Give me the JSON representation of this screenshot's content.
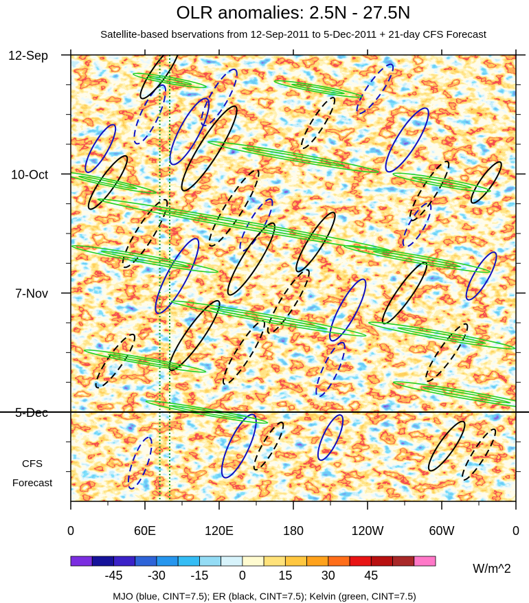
{
  "chart_data": {
    "type": "heatmap",
    "title": "OLR anomalies: 2.5N - 27.5N",
    "subtitle": "Satellite-based bservations from 12-Sep-2011 to 5-Dec-2011 + 21-day CFS Forecast",
    "x_ticks": [
      {
        "lon": 0,
        "label": "0"
      },
      {
        "lon": 60,
        "label": "60E"
      },
      {
        "lon": 120,
        "label": "120E"
      },
      {
        "lon": 180,
        "label": "180"
      },
      {
        "lon": 240,
        "label": "120W"
      },
      {
        "lon": 300,
        "label": "60W"
      },
      {
        "lon": 360,
        "label": "0"
      }
    ],
    "xlim": [
      0,
      360
    ],
    "y_ticks": [
      {
        "day": 0,
        "label": "12-Sep"
      },
      {
        "day": 28,
        "label": "10-Oct"
      },
      {
        "day": 56,
        "label": "7-Nov"
      },
      {
        "day": 84,
        "label": "5-Dec"
      }
    ],
    "ylim_days": [
      0,
      105
    ],
    "observation_end_day": 84,
    "forecast_label_line1": "CFS",
    "forecast_label_line2": "Forecast",
    "reference_lines_lon": [
      72,
      80
    ],
    "colorbar": {
      "levels": [
        "-45",
        "-30",
        "-15",
        "0",
        "15",
        "30",
        "45"
      ],
      "colors": [
        "#7b2ee0",
        "#16129a",
        "#3b22c8",
        "#2e64d8",
        "#2696ee",
        "#35bdf5",
        "#94dcf5",
        "#d7f3fb",
        "#fffbd0",
        "#ffe27a",
        "#ffc740",
        "#ffa21c",
        "#ff6e1a",
        "#e81414",
        "#b81010",
        "#a82828",
        "#ff78c8"
      ],
      "unit": "W/m^2"
    },
    "contour_legend": "MJO (blue, CINT=7.5); ER (black, CINT=7.5); Kelvin (green, CINT=7.5)",
    "contour_colors": {
      "mjo": "#1010c0",
      "er": "#000000",
      "kelvin": "#22d022"
    },
    "mjo_contours": [
      {
        "lon": 24,
        "day": 22,
        "a": 22,
        "b": 6,
        "angle": -60,
        "dashed": false
      },
      {
        "lon": 64,
        "day": 14,
        "a": 26,
        "b": 7,
        "angle": -65,
        "dashed": true
      },
      {
        "lon": 96,
        "day": 18,
        "a": 30,
        "b": 8,
        "angle": -62,
        "dashed": false
      },
      {
        "lon": 120,
        "day": 10,
        "a": 26,
        "b": 7,
        "angle": -60,
        "dashed": true
      },
      {
        "lon": 86,
        "day": 52,
        "a": 34,
        "b": 8,
        "angle": -62,
        "dashed": false
      },
      {
        "lon": 150,
        "day": 40,
        "a": 24,
        "b": 6,
        "angle": -60,
        "dashed": true
      },
      {
        "lon": 224,
        "day": 60,
        "a": 28,
        "b": 7,
        "angle": -62,
        "dashed": false
      },
      {
        "lon": 210,
        "day": 74,
        "a": 24,
        "b": 6,
        "angle": -65,
        "dashed": true
      },
      {
        "lon": 272,
        "day": 20,
        "a": 30,
        "b": 8,
        "angle": -58,
        "dashed": false
      },
      {
        "lon": 246,
        "day": 8,
        "a": 24,
        "b": 6,
        "angle": -55,
        "dashed": true
      },
      {
        "lon": 332,
        "day": 52,
        "a": 22,
        "b": 6,
        "angle": -60,
        "dashed": false
      },
      {
        "lon": 136,
        "day": 92,
        "a": 28,
        "b": 8,
        "angle": -65,
        "dashed": false
      },
      {
        "lon": 56,
        "day": 96,
        "a": 22,
        "b": 6,
        "angle": -70,
        "dashed": true
      },
      {
        "lon": 210,
        "day": 90,
        "a": 20,
        "b": 6,
        "angle": -65,
        "dashed": false
      },
      {
        "lon": 280,
        "day": 40,
        "a": 20,
        "b": 6,
        "angle": -60,
        "dashed": true
      }
    ],
    "er_contours": [
      {
        "lon": 30,
        "day": 30,
        "a": 26,
        "b": 6,
        "angle": -55,
        "dashed": false
      },
      {
        "lon": 60,
        "day": 42,
        "a": 32,
        "b": 7,
        "angle": -58,
        "dashed": true
      },
      {
        "lon": 112,
        "day": 22,
        "a": 40,
        "b": 8,
        "angle": -58,
        "dashed": false
      },
      {
        "lon": 132,
        "day": 36,
        "a": 36,
        "b": 7,
        "angle": -58,
        "dashed": true
      },
      {
        "lon": 146,
        "day": 48,
        "a": 34,
        "b": 7,
        "angle": -58,
        "dashed": false
      },
      {
        "lon": 176,
        "day": 58,
        "a": 30,
        "b": 6,
        "angle": -58,
        "dashed": true
      },
      {
        "lon": 198,
        "day": 44,
        "a": 28,
        "b": 6,
        "angle": -58,
        "dashed": false
      },
      {
        "lon": 100,
        "day": 66,
        "a": 34,
        "b": 7,
        "angle": -55,
        "dashed": false
      },
      {
        "lon": 140,
        "day": 70,
        "a": 30,
        "b": 6,
        "angle": -58,
        "dashed": true
      },
      {
        "lon": 36,
        "day": 72,
        "a": 26,
        "b": 6,
        "angle": -55,
        "dashed": true
      },
      {
        "lon": 200,
        "day": 16,
        "a": 24,
        "b": 5,
        "angle": -58,
        "dashed": true
      },
      {
        "lon": 290,
        "day": 32,
        "a": 28,
        "b": 6,
        "angle": -58,
        "dashed": true
      },
      {
        "lon": 336,
        "day": 30,
        "a": 20,
        "b": 5,
        "angle": -55,
        "dashed": false
      },
      {
        "lon": 270,
        "day": 56,
        "a": 30,
        "b": 6,
        "angle": -55,
        "dashed": false
      },
      {
        "lon": 304,
        "day": 70,
        "a": 28,
        "b": 6,
        "angle": -55,
        "dashed": true
      },
      {
        "lon": 304,
        "day": 92,
        "a": 24,
        "b": 6,
        "angle": -55,
        "dashed": false
      },
      {
        "lon": 330,
        "day": 94,
        "a": 24,
        "b": 5,
        "angle": -58,
        "dashed": true
      },
      {
        "lon": 160,
        "day": 92,
        "a": 22,
        "b": 5,
        "angle": -60,
        "dashed": true
      },
      {
        "lon": 72,
        "day": 4,
        "a": 26,
        "b": 6,
        "angle": -55,
        "dashed": false
      }
    ],
    "kelvin_contours": [
      {
        "lon": 200,
        "day": 8,
        "a": 36,
        "b": 2.5,
        "angle": 10
      },
      {
        "lon": 80,
        "day": 6,
        "a": 30,
        "b": 2.5,
        "angle": 10
      },
      {
        "lon": 180,
        "day": 24,
        "a": 70,
        "b": 3,
        "angle": 10
      },
      {
        "lon": 30,
        "day": 30,
        "a": 40,
        "b": 2.5,
        "angle": 12
      },
      {
        "lon": 300,
        "day": 30,
        "a": 40,
        "b": 3,
        "angle": 10
      },
      {
        "lon": 140,
        "day": 40,
        "a": 120,
        "b": 3,
        "angle": 10
      },
      {
        "lon": 60,
        "day": 48,
        "a": 60,
        "b": 3,
        "angle": 10
      },
      {
        "lon": 280,
        "day": 48,
        "a": 60,
        "b": 3,
        "angle": 10
      },
      {
        "lon": 160,
        "day": 62,
        "a": 80,
        "b": 3,
        "angle": 10
      },
      {
        "lon": 300,
        "day": 66,
        "a": 60,
        "b": 3,
        "angle": 10
      },
      {
        "lon": 60,
        "day": 72,
        "a": 50,
        "b": 2.5,
        "angle": 10
      },
      {
        "lon": 320,
        "day": 80,
        "a": 60,
        "b": 3,
        "angle": 10
      },
      {
        "lon": 110,
        "day": 84,
        "a": 50,
        "b": 2.5,
        "angle": 10
      }
    ]
  }
}
